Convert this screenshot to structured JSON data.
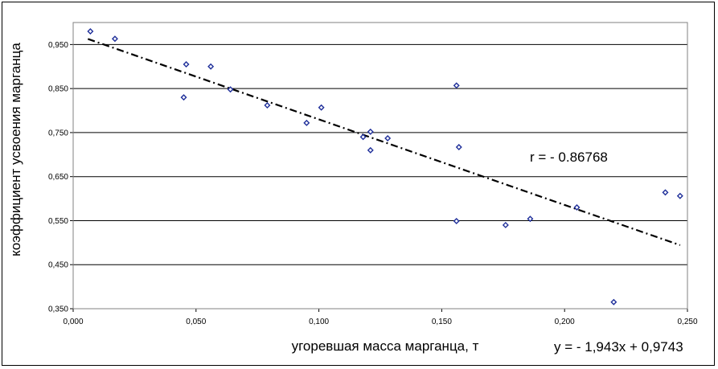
{
  "chart_data": {
    "type": "scatter",
    "xlabel": "угоревшая масса марганца, т",
    "ylabel": "коэффициент усвоения марганца",
    "xlim": [
      0,
      0.25
    ],
    "ylim": [
      0.35,
      1.0
    ],
    "x_ticks": [
      "0,000",
      "0,050",
      "0,100",
      "0,150",
      "0,200",
      "0,250"
    ],
    "x_tick_values": [
      0,
      0.05,
      0.1,
      0.15,
      0.2,
      0.25
    ],
    "y_ticks": [
      "0,950",
      "0,850",
      "0,750",
      "0,650",
      "0,550",
      "0,450",
      "0,350"
    ],
    "y_tick_values": [
      0.95,
      0.85,
      0.75,
      0.65,
      0.55,
      0.45,
      0.35
    ],
    "grid": "horizontal",
    "marker_color": "#1f2f9a",
    "trendline": {
      "style": "dash-dot",
      "color": "#000000",
      "slope": -1.943,
      "intercept": 0.9743,
      "x_range": [
        0.006,
        0.247
      ]
    },
    "annotations": {
      "correlation": "r  = - 0.86768",
      "equation": "y = - 1,943x + 0,9743"
    },
    "series": [
      {
        "points": [
          [
            0.007,
            0.98
          ],
          [
            0.017,
            0.963
          ],
          [
            0.045,
            0.83
          ],
          [
            0.046,
            0.905
          ],
          [
            0.056,
            0.9
          ],
          [
            0.064,
            0.848
          ],
          [
            0.079,
            0.812
          ],
          [
            0.095,
            0.772
          ],
          [
            0.101,
            0.807
          ],
          [
            0.118,
            0.74
          ],
          [
            0.121,
            0.752
          ],
          [
            0.121,
            0.71
          ],
          [
            0.128,
            0.737
          ],
          [
            0.156,
            0.857
          ],
          [
            0.157,
            0.717
          ],
          [
            0.156,
            0.549
          ],
          [
            0.176,
            0.54
          ],
          [
            0.186,
            0.554
          ],
          [
            0.205,
            0.58
          ],
          [
            0.22,
            0.365
          ],
          [
            0.241,
            0.614
          ],
          [
            0.247,
            0.606
          ]
        ]
      }
    ]
  }
}
